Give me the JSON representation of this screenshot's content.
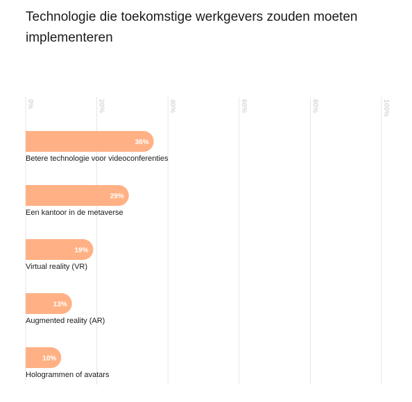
{
  "chart_data": {
    "type": "bar",
    "orientation": "horizontal",
    "title": "Technologie die toekomstige werkgevers zouden moeten implementeren",
    "categories": [
      "Betere technologie voor videoconferenties",
      "Een kantoor in de metaverse",
      "Virtual reality (VR)",
      "Augmented reality (AR)",
      "Hologrammen of avatars"
    ],
    "values": [
      36,
      29,
      19,
      13,
      10
    ],
    "value_labels": [
      "36%",
      "29%",
      "19%",
      "13%",
      "10%"
    ],
    "xlim": [
      0,
      100
    ],
    "x_ticks": [
      0,
      20,
      40,
      60,
      80,
      100
    ],
    "x_tick_labels": [
      "0%",
      "20%",
      "40%",
      "60%",
      "80%",
      "100%"
    ],
    "grid": true,
    "bar_color": "#ffb185",
    "grid_color": "#e6e6e6",
    "tick_label_color": "#d9d9d9"
  }
}
